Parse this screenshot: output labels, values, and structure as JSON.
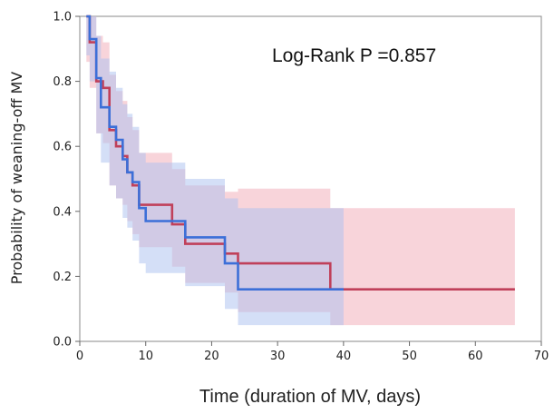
{
  "chart_data": {
    "type": "line",
    "subtype": "kaplan-meier step curves with confidence bands",
    "title": "",
    "xlabel": "Time (duration of MV, days)",
    "ylabel": "Probability  of  weaning-off  MV",
    "xlim": [
      0,
      70
    ],
    "ylim": [
      0.0,
      1.0
    ],
    "x_ticks": [
      "0",
      "10",
      "20",
      "30",
      "40",
      "50",
      "60",
      "70"
    ],
    "y_ticks": [
      "0.0",
      "0.2",
      "0.4",
      "0.6",
      "0.8",
      "1.0"
    ],
    "grid": false,
    "annotation": "Log-Rank P  =0.857",
    "series": [
      {
        "color": "#c0405a",
        "band_color": "#f2aab6",
        "steps": [
          [
            1,
            1.0
          ],
          [
            1.5,
            0.92
          ],
          [
            2.5,
            0.8
          ],
          [
            3.5,
            0.78
          ],
          [
            4.5,
            0.65
          ],
          [
            5.5,
            0.6
          ],
          [
            6.5,
            0.57
          ],
          [
            7.2,
            0.52
          ],
          [
            8,
            0.48
          ],
          [
            9,
            0.42
          ],
          [
            14,
            0.36
          ],
          [
            16,
            0.3
          ],
          [
            22,
            0.27
          ],
          [
            24,
            0.24
          ],
          [
            38,
            0.16
          ],
          [
            66,
            0.16
          ]
        ],
        "ci_upper": [
          [
            1,
            1.0
          ],
          [
            1.5,
            1.0
          ],
          [
            2.5,
            0.94
          ],
          [
            3.5,
            0.92
          ],
          [
            4.5,
            0.82
          ],
          [
            5.5,
            0.77
          ],
          [
            6.5,
            0.74
          ],
          [
            7.2,
            0.69
          ],
          [
            8,
            0.65
          ],
          [
            9,
            0.58
          ],
          [
            14,
            0.53
          ],
          [
            16,
            0.48
          ],
          [
            22,
            0.46
          ],
          [
            24,
            0.47
          ],
          [
            38,
            0.41
          ],
          [
            66,
            0.41
          ]
        ],
        "ci_lower": [
          [
            1,
            0.86
          ],
          [
            1.5,
            0.78
          ],
          [
            2.5,
            0.64
          ],
          [
            3.5,
            0.61
          ],
          [
            4.5,
            0.48
          ],
          [
            5.5,
            0.44
          ],
          [
            6.5,
            0.42
          ],
          [
            7.2,
            0.37
          ],
          [
            8,
            0.33
          ],
          [
            9,
            0.29
          ],
          [
            14,
            0.23
          ],
          [
            16,
            0.18
          ],
          [
            22,
            0.15
          ],
          [
            24,
            0.09
          ],
          [
            38,
            0.05
          ],
          [
            66,
            0.05
          ]
        ]
      },
      {
        "color": "#3c6fd8",
        "band_color": "#a9bff0",
        "steps": [
          [
            1,
            1.0
          ],
          [
            1.5,
            0.93
          ],
          [
            2.5,
            0.81
          ],
          [
            3.2,
            0.72
          ],
          [
            4.5,
            0.66
          ],
          [
            5.5,
            0.62
          ],
          [
            6.5,
            0.56
          ],
          [
            7.2,
            0.52
          ],
          [
            8,
            0.49
          ],
          [
            9,
            0.41
          ],
          [
            10,
            0.37
          ],
          [
            16,
            0.32
          ],
          [
            22,
            0.24
          ],
          [
            24,
            0.16
          ],
          [
            40,
            0.16
          ]
        ],
        "ci_upper": [
          [
            1,
            1.0
          ],
          [
            1.5,
            1.0
          ],
          [
            2.5,
            0.94
          ],
          [
            3.2,
            0.87
          ],
          [
            4.5,
            0.83
          ],
          [
            5.5,
            0.78
          ],
          [
            6.5,
            0.73
          ],
          [
            7.2,
            0.7
          ],
          [
            8,
            0.66
          ],
          [
            9,
            0.58
          ],
          [
            10,
            0.55
          ],
          [
            16,
            0.5
          ],
          [
            22,
            0.44
          ],
          [
            24,
            0.41
          ],
          [
            40,
            0.41
          ]
        ],
        "ci_lower": [
          [
            1,
            0.88
          ],
          [
            1.5,
            0.8
          ],
          [
            2.5,
            0.64
          ],
          [
            3.2,
            0.55
          ],
          [
            4.5,
            0.48
          ],
          [
            5.5,
            0.44
          ],
          [
            6.5,
            0.38
          ],
          [
            7.2,
            0.35
          ],
          [
            8,
            0.31
          ],
          [
            9,
            0.24
          ],
          [
            10,
            0.21
          ],
          [
            16,
            0.17
          ],
          [
            22,
            0.1
          ],
          [
            24,
            0.05
          ],
          [
            40,
            0.05
          ]
        ]
      }
    ]
  }
}
